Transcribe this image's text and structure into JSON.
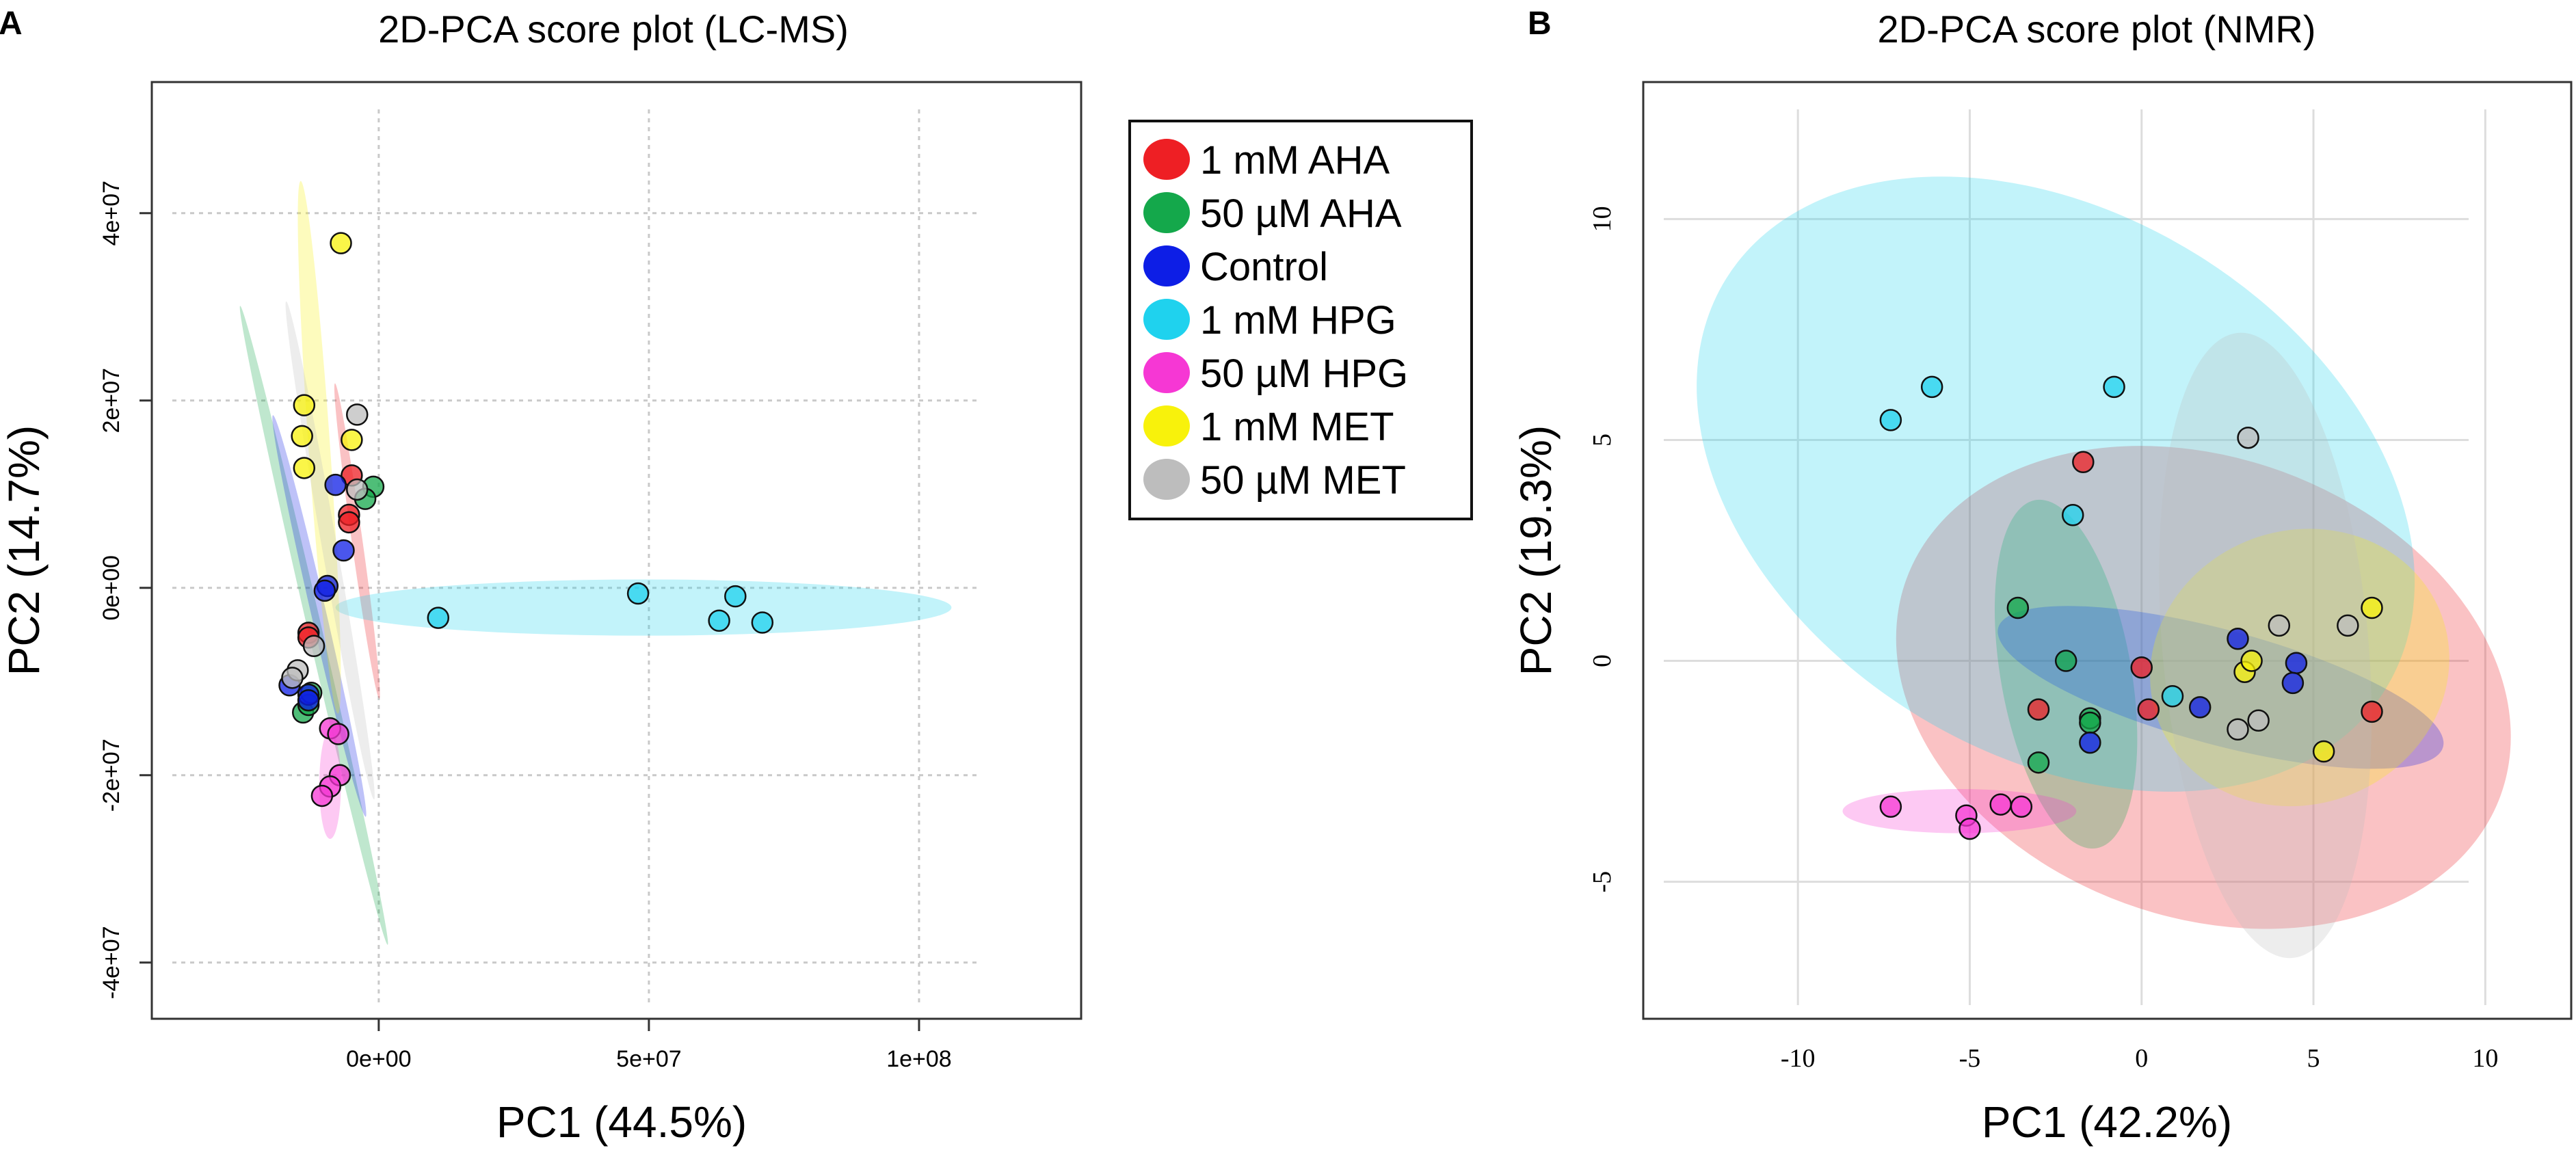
{
  "figure": {
    "panel_a": {
      "letter": "A",
      "chart_data": {
        "type": "scatter",
        "title": "2D-PCA score plot (LC-MS)",
        "xlabel": "PC1 (44.5%)",
        "ylabel": "PC2 (14.7%)",
        "xlim": [
          -42000000.0,
          130000000.0
        ],
        "ylim": [
          -46000000.0,
          54000000.0
        ],
        "xticks": [
          {
            "value": 0,
            "label": "0e+00"
          },
          {
            "value": 50000000,
            "label": "5e+07"
          },
          {
            "value": 100000000,
            "label": "1e+08"
          }
        ],
        "yticks": [
          {
            "value": 40000000,
            "label": "4e+07"
          },
          {
            "value": 20000000,
            "label": "2e+07"
          },
          {
            "value": 0,
            "label": "0e+00"
          },
          {
            "value": -20000000,
            "label": "-2e+07"
          },
          {
            "value": -40000000,
            "label": "-4e+07"
          }
        ],
        "grid": true,
        "legend": "right",
        "series": [
          {
            "name": "1 mM AHA",
            "color": "#ee1f24",
            "points": [
              [
                -5000000.0,
                12000000.0
              ],
              [
                -5500000.0,
                7800000.0
              ],
              [
                -5500000.0,
                7000000.0
              ],
              [
                -13000000.0,
                -4800000.0
              ],
              [
                -13000000.0,
                -5300000.0
              ]
            ],
            "ellipse": {
              "cx": -4000000.0,
              "cy": 5000000.0,
              "rx": 1000000.0,
              "ry": 17000000.0,
              "angle": 8
            }
          },
          {
            "name": "50 µM AHA",
            "color": "#14a84b",
            "points": [
              [
                -1000000.0,
                10800000.0
              ],
              [
                -2500000.0,
                9500000.0
              ],
              [
                -14000000.0,
                -13300000.0
              ],
              [
                -13000000.0,
                -12500000.0
              ],
              [
                -12500000.0,
                -11200000.0
              ]
            ],
            "ellipse": {
              "cx": -12000000.0,
              "cy": -4000000.0,
              "rx": 1300000.0,
              "ry": 35000000.0,
              "angle": 13
            }
          },
          {
            "name": "Control",
            "color": "#0d1ee6",
            "points": [
              [
                -8000000.0,
                11000000.0
              ],
              [
                -6500000.0,
                4000000.0
              ],
              [
                -9500000.0,
                200000.0
              ],
              [
                -10000000.0,
                -300000.0
              ],
              [
                -16500000.0,
                -10400000.0
              ],
              [
                -13000000.0,
                -11400000.0
              ],
              [
                -13000000.0,
                -12000000.0
              ]
            ],
            "ellipse": {
              "cx": -11000000.0,
              "cy": -3000000.0,
              "rx": 1400000.0,
              "ry": 22000000.0,
              "angle": 13
            }
          },
          {
            "name": "1 mM HPG",
            "color": "#1fd2ee",
            "points": [
              [
                11000000.0,
                -3200000.0
              ],
              [
                48000000.0,
                -600000.0
              ],
              [
                66000000.0,
                -900000.0
              ],
              [
                63000000.0,
                -3500000.0
              ],
              [
                71000000.0,
                -3700000.0
              ]
            ],
            "ellipse": {
              "cx": 49000000.0,
              "cy": -2100000.0,
              "rx": 57000000.0,
              "ry": 3000000.0,
              "angle": 0
            }
          },
          {
            "name": "50 µM HPG",
            "color": "#f637d4",
            "points": [
              [
                -9000000.0,
                -15000000.0
              ],
              [
                -7500000.0,
                -15600000.0
              ],
              [
                -7200000.0,
                -20000000.0
              ],
              [
                -9000000.0,
                -21200000.0
              ],
              [
                -10500000.0,
                -22200000.0
              ]
            ],
            "ellipse": {
              "cx": -9000000.0,
              "cy": -21000000.0,
              "rx": 2000000.0,
              "ry": 5800000.0,
              "angle": 0
            }
          },
          {
            "name": "1 mM MET",
            "color": "#f8f20b",
            "points": [
              [
                -7000000.0,
                36800000.0
              ],
              [
                -13800000.0,
                19500000.0
              ],
              [
                -14200000.0,
                16200000.0
              ],
              [
                -13800000.0,
                12800000.0
              ],
              [
                -5000000.0,
                15800000.0
              ]
            ],
            "ellipse": {
              "cx": -11000000.0,
              "cy": 15000000.0,
              "rx": 2000000.0,
              "ry": 28500000.0,
              "angle": 4
            }
          },
          {
            "name": "50 µM MET",
            "color": "#bdbdbd",
            "points": [
              [
                -4000000.0,
                18500000.0
              ],
              [
                -4000000.0,
                10500000.0
              ],
              [
                -12000000.0,
                -6200000.0
              ],
              [
                -15000000.0,
                -8800000.0
              ],
              [
                -16000000.0,
                -9600000.0
              ]
            ],
            "ellipse": {
              "cx": -9000000.0,
              "cy": 4000000.0,
              "rx": 1400000.0,
              "ry": 27000000.0,
              "angle": 10
            }
          }
        ]
      },
      "legend_items": [
        "1 mM AHA",
        "50 µM AHA",
        "Control",
        "1 mM HPG",
        "50 µM HPG",
        "1 mM MET",
        "50 µM MET"
      ]
    },
    "panel_b": {
      "letter": "B",
      "chart_data": {
        "type": "scatter",
        "title": "2D-PCA score plot (NMR)",
        "xlabel": "PC1 (42.2%)",
        "ylabel": "PC2 (19.3%)",
        "xlim": [
          -14.5,
          12.5
        ],
        "ylim": [
          -8.1,
          13.1
        ],
        "xticks": [
          {
            "value": -10,
            "label": "-10"
          },
          {
            "value": -5,
            "label": "-5"
          },
          {
            "value": 0,
            "label": "0"
          },
          {
            "value": 5,
            "label": "5"
          },
          {
            "value": 10,
            "label": "10"
          }
        ],
        "yticks": [
          {
            "value": 10,
            "label": "10"
          },
          {
            "value": 5,
            "label": "5"
          },
          {
            "value": 0,
            "label": "0"
          },
          {
            "value": -5,
            "label": "-5"
          }
        ],
        "grid": true,
        "series": [
          {
            "name": "1 mM AHA",
            "color": "#ee1f24",
            "points": [
              [
                -1.7,
                4.5
              ],
              [
                -3.0,
                -1.1
              ],
              [
                0.0,
                -0.15
              ],
              [
                0.2,
                -1.1
              ],
              [
                6.7,
                -1.15
              ]
            ],
            "ellipse": {
              "cx": 1.8,
              "cy": -0.6,
              "rx": 9.2,
              "ry": 5.2,
              "angle": -20
            }
          },
          {
            "name": "50 µM AHA",
            "color": "#14a84b",
            "points": [
              [
                -3.6,
                1.2
              ],
              [
                -2.2,
                0.0
              ],
              [
                -1.5,
                -1.3
              ],
              [
                -1.5,
                -1.4
              ],
              [
                -3.0,
                -2.3
              ]
            ],
            "ellipse": {
              "cx": -2.2,
              "cy": -0.3,
              "rx": 1.9,
              "ry": 4.0,
              "angle": 10
            }
          },
          {
            "name": "Control",
            "color": "#0d1ee6",
            "points": [
              [
                1.7,
                -1.05
              ],
              [
                2.8,
                0.5
              ],
              [
                4.5,
                -0.05
              ],
              [
                4.4,
                -0.5
              ],
              [
                -1.5,
                -1.85
              ]
            ],
            "ellipse": {
              "cx": 2.3,
              "cy": -0.6,
              "rx": 6.7,
              "ry": 1.3,
              "angle": -15
            }
          },
          {
            "name": "1 mM HPG",
            "color": "#1fd2ee",
            "points": [
              [
                -6.1,
                6.2
              ],
              [
                -7.3,
                5.45
              ],
              [
                -0.8,
                6.2
              ],
              [
                -2.0,
                3.3
              ],
              [
                0.9,
                -0.8
              ]
            ],
            "ellipse": {
              "cx": -2.5,
              "cy": 4.0,
              "rx": 11.3,
              "ry": 6.1,
              "angle": -32
            }
          },
          {
            "name": "50 µM HPG",
            "color": "#f637d4",
            "points": [
              [
                -7.3,
                -3.3
              ],
              [
                -5.1,
                -3.5
              ],
              [
                -5.0,
                -3.8
              ],
              [
                -4.1,
                -3.25
              ],
              [
                -3.5,
                -3.3
              ]
            ],
            "ellipse": {
              "cx": -5.3,
              "cy": -3.4,
              "rx": 3.4,
              "ry": 0.5,
              "angle": 0
            }
          },
          {
            "name": "1 mM MET",
            "color": "#f8f20b",
            "points": [
              [
                3.0,
                -0.25
              ],
              [
                3.2,
                0.0
              ],
              [
                5.3,
                -2.05
              ],
              [
                6.7,
                1.2
              ]
            ],
            "ellipse": {
              "cx": 4.6,
              "cy": -0.15,
              "rx": 4.4,
              "ry": 3.1,
              "angle": 20
            }
          },
          {
            "name": "50 µM MET",
            "color": "#bdbdbd",
            "points": [
              [
                3.1,
                5.05
              ],
              [
                4.0,
                0.8
              ],
              [
                6.0,
                0.8
              ],
              [
                3.4,
                -1.35
              ],
              [
                2.8,
                -1.55
              ]
            ],
            "ellipse": {
              "cx": 3.6,
              "cy": 0.35,
              "rx": 3.0,
              "ry": 7.1,
              "angle": 5
            }
          }
        ]
      }
    }
  }
}
